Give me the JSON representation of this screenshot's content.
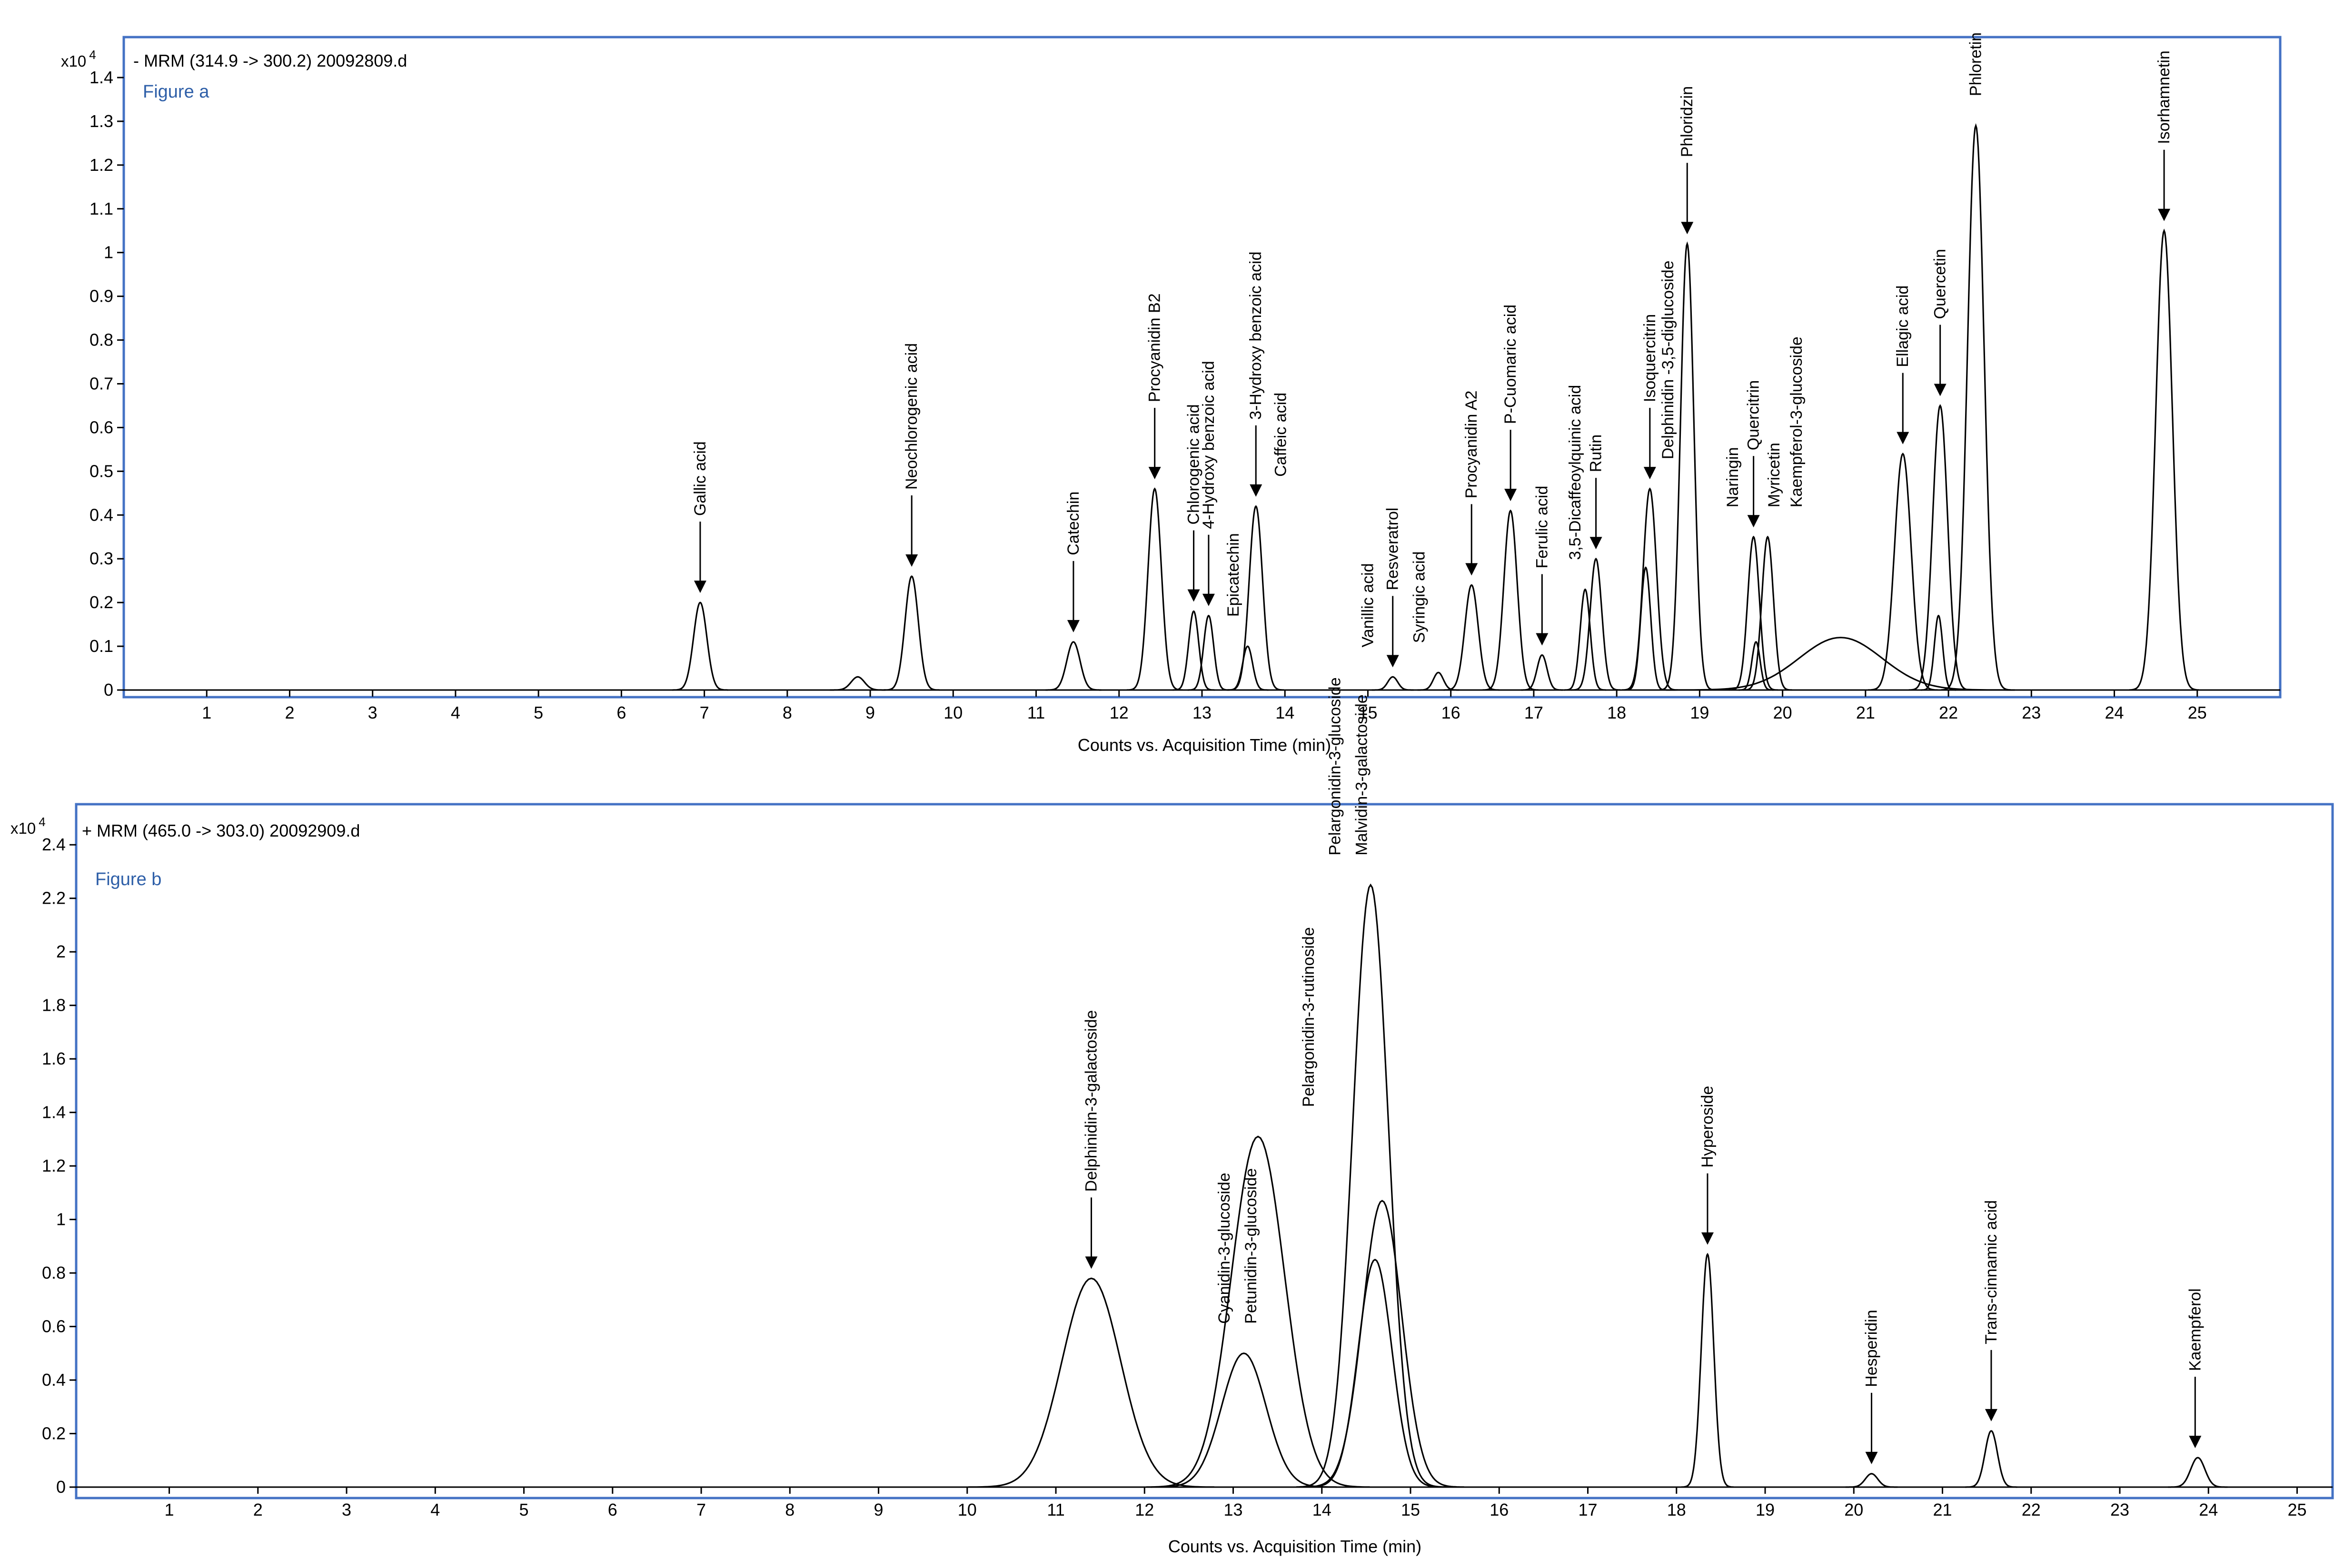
{
  "chart_data": [
    {
      "type": "line",
      "header": "- MRM (314.9 -> 300.2) 20092809.d",
      "figure_label": "Figure a",
      "exponent_label": "x10",
      "exponent_power": "4",
      "xlabel": "Counts vs. Acquisition Time (min)",
      "xlim": [
        0,
        26
      ],
      "ylim": [
        0,
        1.45
      ],
      "xticks": [
        "1",
        "2",
        "3",
        "4",
        "5",
        "6",
        "7",
        "8",
        "9",
        "10",
        "11",
        "12",
        "13",
        "14",
        "15",
        "16",
        "17",
        "18",
        "19",
        "20",
        "21",
        "22",
        "23",
        "24",
        "25"
      ],
      "yticks": [
        "0",
        "0.1",
        "0.2",
        "0.3",
        "0.4",
        "0.5",
        "0.6",
        "0.7",
        "0.8",
        "0.9",
        "1",
        "1.1",
        "1.2",
        "1.3",
        "1.4"
      ],
      "peaks": [
        {
          "t": 6.95,
          "h": 0.2,
          "w": 0.08
        },
        {
          "t": 8.85,
          "h": 0.03,
          "w": 0.08
        },
        {
          "t": 9.5,
          "h": 0.26,
          "w": 0.08
        },
        {
          "t": 11.45,
          "h": 0.11,
          "w": 0.08
        },
        {
          "t": 12.43,
          "h": 0.46,
          "w": 0.08
        },
        {
          "t": 12.9,
          "h": 0.18,
          "w": 0.06
        },
        {
          "t": 13.08,
          "h": 0.17,
          "w": 0.06
        },
        {
          "t": 13.55,
          "h": 0.1,
          "w": 0.06
        },
        {
          "t": 13.65,
          "h": 0.42,
          "w": 0.08
        },
        {
          "t": 15.3,
          "h": 0.03,
          "w": 0.06
        },
        {
          "t": 15.85,
          "h": 0.04,
          "w": 0.06
        },
        {
          "t": 16.25,
          "h": 0.24,
          "w": 0.08
        },
        {
          "t": 16.72,
          "h": 0.41,
          "w": 0.08
        },
        {
          "t": 17.1,
          "h": 0.08,
          "w": 0.06
        },
        {
          "t": 17.62,
          "h": 0.23,
          "w": 0.06
        },
        {
          "t": 17.75,
          "h": 0.3,
          "w": 0.07
        },
        {
          "t": 18.35,
          "h": 0.28,
          "w": 0.06
        },
        {
          "t": 18.4,
          "h": 0.46,
          "w": 0.08
        },
        {
          "t": 18.85,
          "h": 1.02,
          "w": 0.08
        },
        {
          "t": 19.65,
          "h": 0.35,
          "w": 0.07
        },
        {
          "t": 19.82,
          "h": 0.35,
          "w": 0.07
        },
        {
          "t": 19.68,
          "h": 0.11,
          "w": 0.05
        },
        {
          "t": 21.45,
          "h": 0.54,
          "w": 0.1
        },
        {
          "t": 20.7,
          "h": 0.12,
          "w": 0.5
        },
        {
          "t": 21.9,
          "h": 0.65,
          "w": 0.09
        },
        {
          "t": 21.88,
          "h": 0.17,
          "w": 0.05
        },
        {
          "t": 22.33,
          "h": 1.29,
          "w": 0.1
        },
        {
          "t": 24.6,
          "h": 1.05,
          "w": 0.1
        }
      ],
      "annotations": [
        {
          "t": 6.95,
          "label": "Gallic acid",
          "arrow": true
        },
        {
          "t": 9.5,
          "label": "Neochlorogenic acid",
          "arrow": true
        },
        {
          "t": 11.45,
          "label": "Catechin",
          "arrow": true
        },
        {
          "t": 12.43,
          "label": "Procyanidin B2",
          "arrow": true
        },
        {
          "t": 12.9,
          "label": "Chlorogenic acid",
          "arrow": true
        },
        {
          "t": 13.08,
          "label": "4-Hydroxy benzoic acid",
          "arrow": true
        },
        {
          "t": 13.38,
          "label": "Epicatechin",
          "arrow": false
        },
        {
          "t": 13.65,
          "label": "3-Hydroxy benzoic acid",
          "arrow": true
        },
        {
          "t": 13.95,
          "label": "Caffeic acid",
          "arrow": false
        },
        {
          "t": 15.0,
          "label": "Vanillic acid",
          "arrow": false
        },
        {
          "t": 15.3,
          "label": "Resveratrol",
          "arrow": true
        },
        {
          "t": 15.62,
          "label": "Syringic acid",
          "arrow": false
        },
        {
          "t": 16.25,
          "label": "Procyanidin A2",
          "arrow": true
        },
        {
          "t": 16.72,
          "label": "P-Cuomaric acid",
          "arrow": true
        },
        {
          "t": 17.1,
          "label": "Ferulic acid",
          "arrow": true
        },
        {
          "t": 17.5,
          "label": "3,5-Dicaffeoylquinic acid",
          "arrow": false
        },
        {
          "t": 17.75,
          "label": "Rutin",
          "arrow": true
        },
        {
          "t": 18.4,
          "label": "Isoquercitrin",
          "arrow": true
        },
        {
          "t": 18.62,
          "label": "Delphinidin -3,5-diglucoside",
          "arrow": false
        },
        {
          "t": 18.85,
          "label": "Phloridzin",
          "arrow": true
        },
        {
          "t": 19.4,
          "label": "Naringin",
          "arrow": false
        },
        {
          "t": 19.65,
          "label": "Quercitrin",
          "arrow": true
        },
        {
          "t": 19.9,
          "label": "Myricetin",
          "arrow": false
        },
        {
          "t": 20.17,
          "label": "Kaempferol-3-glucoside",
          "arrow": false
        },
        {
          "t": 21.45,
          "label": "Ellagic acid",
          "arrow": true
        },
        {
          "t": 21.9,
          "label": "Quercetin",
          "arrow": true
        },
        {
          "t": 22.33,
          "label": "Phloretin",
          "arrow": false
        },
        {
          "t": 24.6,
          "label": "Isorhamnetin",
          "arrow": true
        }
      ]
    },
    {
      "type": "line",
      "header": "+ MRM (465.0 -> 303.0) 20092909.d",
      "figure_label": "Figure b",
      "exponent_label": "x10",
      "exponent_power": "4",
      "xlabel": "Counts vs. Acquisition Time (min)",
      "xlim": [
        -0.05,
        25.4
      ],
      "ylim": [
        0,
        2.5
      ],
      "xticks": [
        "1",
        "2",
        "3",
        "4",
        "5",
        "6",
        "7",
        "8",
        "9",
        "10",
        "11",
        "12",
        "13",
        "14",
        "15",
        "16",
        "17",
        "18",
        "19",
        "20",
        "21",
        "22",
        "23",
        "24",
        "25"
      ],
      "yticks": [
        "0",
        "0.2",
        "0.4",
        "0.6",
        "0.8",
        "1",
        "1.2",
        "1.4",
        "1.6",
        "1.8",
        "2",
        "2.2",
        "2.4"
      ],
      "peaks": [
        {
          "t": 11.4,
          "h": 0.78,
          "w": 0.33
        },
        {
          "t": 13.12,
          "h": 0.5,
          "w": 0.25
        },
        {
          "t": 13.28,
          "h": 1.31,
          "w": 0.3
        },
        {
          "t": 14.55,
          "h": 2.25,
          "w": 0.2
        },
        {
          "t": 14.68,
          "h": 1.07,
          "w": 0.22
        },
        {
          "t": 14.6,
          "h": 0.85,
          "w": 0.19
        },
        {
          "t": 18.35,
          "h": 0.87,
          "w": 0.07
        },
        {
          "t": 20.2,
          "h": 0.05,
          "w": 0.07
        },
        {
          "t": 21.55,
          "h": 0.21,
          "w": 0.07
        },
        {
          "t": 23.88,
          "h": 0.11,
          "w": 0.08
        }
      ],
      "annotations": [
        {
          "t": 11.4,
          "label": "Delphinidin-3-galactoside",
          "arrow": true
        },
        {
          "t": 12.9,
          "label": "Cyanidin-3-glucoside",
          "arrow": false
        },
        {
          "t": 13.2,
          "label": "Petunidin-3-glucoside",
          "arrow": false
        },
        {
          "t": 13.85,
          "label": "Pelargonidin-3-rutinoside",
          "arrow": false
        },
        {
          "t": 14.15,
          "label": "Pelargonidin-3-glucoside",
          "arrow": false
        },
        {
          "t": 14.45,
          "label": "Malvidin-3-galactoside",
          "arrow": false
        },
        {
          "t": 18.35,
          "label": "Hyperoside",
          "arrow": true
        },
        {
          "t": 20.2,
          "label": "Hesperidin",
          "arrow": true
        },
        {
          "t": 21.55,
          "label": "Trans-cinnamic acid",
          "arrow": true
        },
        {
          "t": 23.85,
          "label": "Kaempferol",
          "arrow": true
        }
      ]
    }
  ],
  "colors": {
    "frame": "#4472c4",
    "trace": "#000000",
    "figure_label": "#2e5fa8"
  }
}
